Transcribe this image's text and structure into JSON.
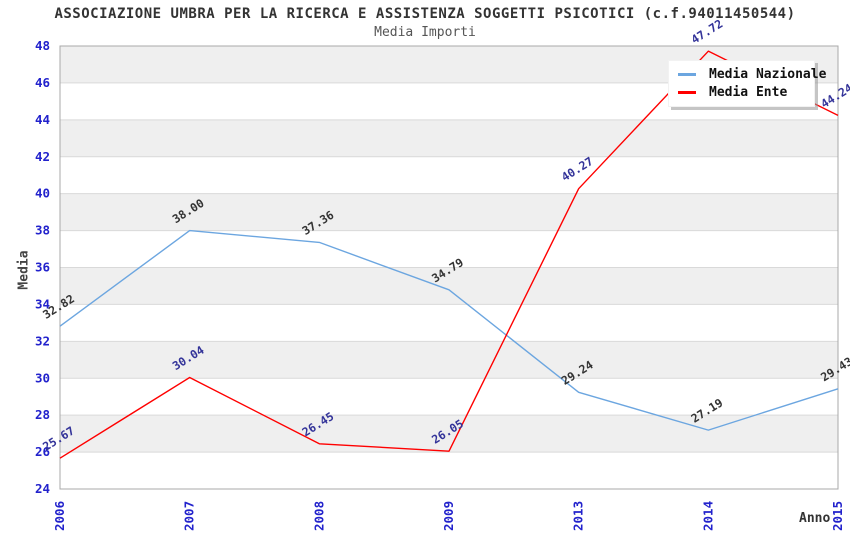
{
  "header": {
    "title": "ASSOCIAZIONE UMBRA PER LA RICERCA E ASSISTENZA SOGGETTI PSICOTICI (c.f.94011450544)",
    "subtitle": "Media Importi"
  },
  "chart_data": {
    "type": "line",
    "title": "ASSOCIAZIONE UMBRA PER LA RICERCA E ASSISTENZA SOGGETTI PSICOTICI (c.f.94011450544)",
    "subtitle": "Media Importi",
    "xlabel": "Anno",
    "ylabel": "Media",
    "categories": [
      "2006",
      "2007",
      "2008",
      "2009",
      "2013",
      "2014",
      "2015"
    ],
    "series": [
      {
        "name": "Media Nazionale",
        "color": "#6CA6E0",
        "label_color": "#333333",
        "values": [
          32.82,
          38.0,
          37.36,
          34.79,
          29.24,
          27.19,
          29.43
        ]
      },
      {
        "name": "Media Ente",
        "color": "#FF0000",
        "label_color": "#333399",
        "values": [
          25.67,
          30.04,
          26.45,
          26.05,
          40.27,
          47.72,
          44.24
        ]
      }
    ],
    "ylim": [
      24,
      48
    ],
    "ytick_step": 2,
    "grid": true,
    "band_colors": [
      "#EFEFEF",
      "#FFFFFF"
    ],
    "tick_color": "#2222CC",
    "gridline_color": "#D9D9D9",
    "plot_border_color": "#A8A8A8",
    "legend_position": "top-right"
  }
}
